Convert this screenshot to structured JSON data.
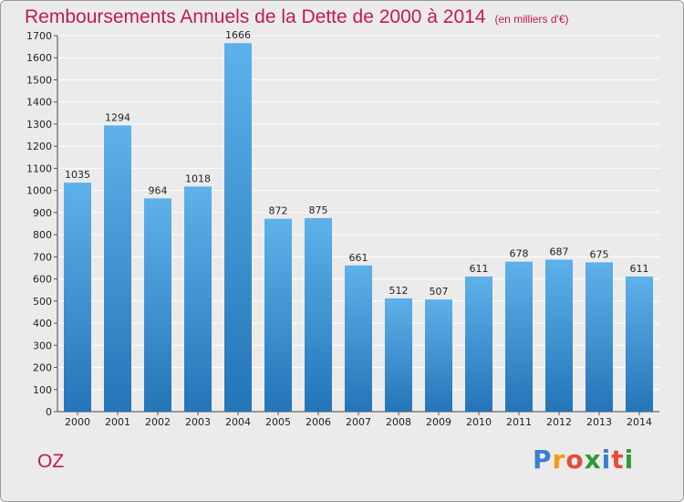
{
  "header": {
    "title": "Remboursements Annuels de la Dette de 2000 à 2014",
    "subtitle": "(en milliers d'€)"
  },
  "footer": {
    "commune": "OZ",
    "logo_letters": [
      "P",
      "r",
      "o",
      "x",
      "i",
      "t",
      "i"
    ],
    "logo_colors": [
      "#3b7fd0",
      "#f39c12",
      "#e74c3c",
      "#2c9b3a",
      "#3b7fd0",
      "#e74c3c",
      "#2c9b3a"
    ]
  },
  "colors": {
    "bar_top": "#5eb1ea",
    "bar_bottom": "#2475b8",
    "grid": "#ffffff",
    "background": "#ebebeb",
    "title": "#c2185b"
  },
  "chart_data": {
    "type": "bar",
    "categories": [
      "2000",
      "2001",
      "2002",
      "2003",
      "2004",
      "2005",
      "2006",
      "2007",
      "2008",
      "2009",
      "2010",
      "2011",
      "2012",
      "2013",
      "2014"
    ],
    "values": [
      1035,
      1294,
      964,
      1018,
      1666,
      872,
      875,
      661,
      512,
      507,
      611,
      678,
      687,
      675,
      611
    ],
    "yticks": [
      0,
      100,
      200,
      300,
      400,
      500,
      600,
      700,
      800,
      900,
      1000,
      1100,
      1200,
      1300,
      1400,
      1500,
      1600,
      1700
    ],
    "ylim": [
      0,
      1700
    ],
    "grid": true,
    "data_labels": true
  }
}
